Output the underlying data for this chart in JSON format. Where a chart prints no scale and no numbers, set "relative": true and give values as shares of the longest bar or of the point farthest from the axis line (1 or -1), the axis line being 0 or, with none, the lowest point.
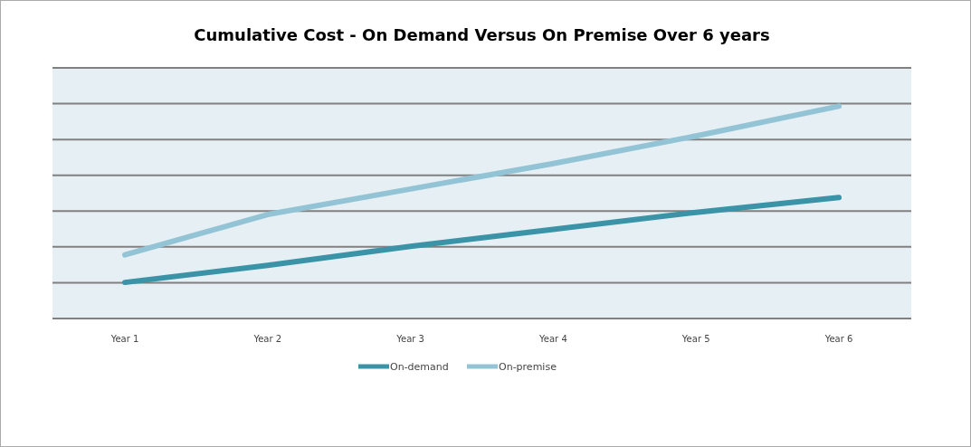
{
  "chart_data": {
    "type": "line",
    "title": "Cumulative Cost - On Demand Versus On Premise Over 6 years",
    "categories": [
      "Year 1",
      "Year 2",
      "Year 3",
      "Year 4",
      "Year 5",
      "Year 6"
    ],
    "relative": true,
    "grid": "y",
    "legend": "bottom",
    "marker": "none",
    "line_style": "solid",
    "series": [
      {
        "name": "On-demand",
        "color": "#3a93a6",
        "values": [
          0.17,
          0.25,
          0.34,
          0.42,
          0.5,
          0.57
        ]
      },
      {
        "name": "On-premise",
        "color": "#93c4d6",
        "values": [
          0.3,
          0.49,
          0.61,
          0.73,
          0.86,
          1
        ]
      }
    ]
  }
}
